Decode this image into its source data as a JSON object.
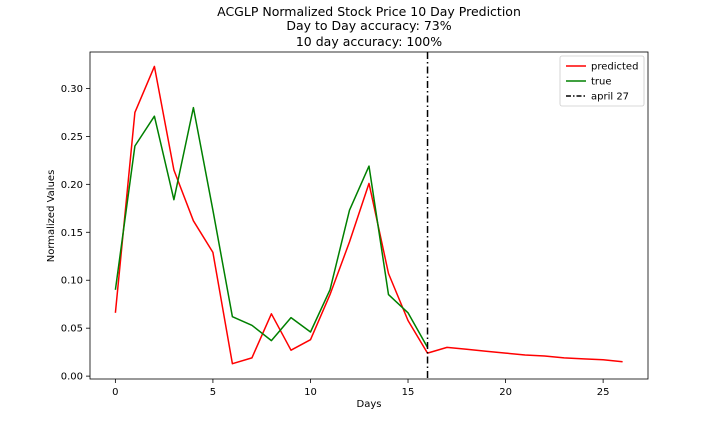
{
  "chart_data": {
    "type": "line",
    "title": [
      "ACGLP Normalized Stock Price 10 Day Prediction",
      "Day to Day accuracy: 73%",
      "10 day accuracy: 100%"
    ],
    "xlabel": "Days",
    "ylabel": "Normalized Values",
    "xlim": [
      -1.3,
      27.3
    ],
    "ylim": [
      -0.003,
      0.338
    ],
    "xticks": [
      0,
      5,
      10,
      15,
      20,
      25
    ],
    "xtick_labels": [
      "0",
      "5",
      "10",
      "15",
      "20",
      "25"
    ],
    "yticks": [
      0.0,
      0.05,
      0.1,
      0.15,
      0.2,
      0.25,
      0.3
    ],
    "ytick_labels": [
      "0.00",
      "0.05",
      "0.10",
      "0.15",
      "0.20",
      "0.25",
      "0.30"
    ],
    "grid": false,
    "legend_position": "top-right",
    "series": [
      {
        "name": "predicted",
        "color": "#ff0000",
        "x": [
          0,
          1,
          2,
          3,
          4,
          5,
          6,
          7,
          8,
          9,
          10,
          11,
          12,
          13,
          14,
          15,
          16,
          17,
          18,
          19,
          20,
          21,
          22,
          23,
          24,
          25,
          26
        ],
        "y": [
          0.066,
          0.275,
          0.323,
          0.215,
          0.162,
          0.129,
          0.013,
          0.019,
          0.065,
          0.027,
          0.038,
          0.085,
          0.14,
          0.201,
          0.107,
          0.058,
          0.024,
          0.03,
          0.028,
          0.026,
          0.024,
          0.022,
          0.021,
          0.019,
          0.018,
          0.017,
          0.015
        ]
      },
      {
        "name": "true",
        "color": "#008000",
        "x": [
          0,
          1,
          2,
          3,
          4,
          5,
          6,
          7,
          8,
          9,
          10,
          11,
          12,
          13,
          14,
          15,
          16
        ],
        "y": [
          0.09,
          0.24,
          0.271,
          0.184,
          0.28,
          0.173,
          0.062,
          0.053,
          0.037,
          0.061,
          0.046,
          0.09,
          0.173,
          0.219,
          0.085,
          0.066,
          0.03
        ]
      }
    ],
    "vline": {
      "name": "april 27",
      "x": 16,
      "color": "#000000",
      "style": "dashdot"
    }
  }
}
